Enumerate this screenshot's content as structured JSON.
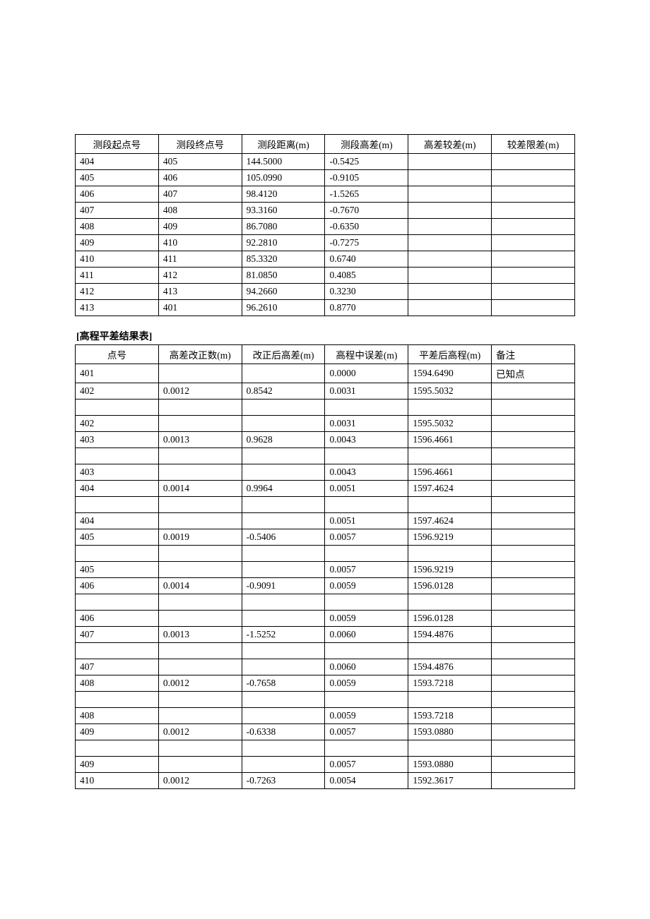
{
  "table1": {
    "columns": [
      "测段起点号",
      "测段终点号",
      "测段距离(m)",
      "测段高差(m)",
      "高差较差(m)",
      "较差限差(m)"
    ],
    "rows": [
      [
        "404",
        "405",
        "144.5000",
        "-0.5425",
        "",
        ""
      ],
      [
        "405",
        "406",
        "105.0990",
        "-0.9105",
        "",
        ""
      ],
      [
        "406",
        "407",
        "98.4120",
        "-1.5265",
        "",
        ""
      ],
      [
        "407",
        "408",
        "93.3160",
        "-0.7670",
        "",
        ""
      ],
      [
        "408",
        "409",
        "86.7080",
        "-0.6350",
        "",
        ""
      ],
      [
        "409",
        "410",
        "92.2810",
        "-0.7275",
        "",
        ""
      ],
      [
        "410",
        "411",
        "85.3320",
        "0.6740",
        "",
        ""
      ],
      [
        "411",
        "412",
        "81.0850",
        "0.4085",
        "",
        ""
      ],
      [
        "412",
        "413",
        "94.2660",
        "0.3230",
        "",
        ""
      ],
      [
        "413",
        "401",
        "96.2610",
        "0.8770",
        "",
        ""
      ]
    ]
  },
  "section2_title": "[高程平差结果表]",
  "table2": {
    "columns": [
      "点号",
      "高差改正数(m)",
      "改正后高差(m)",
      "高程中误差(m)",
      "平差后高程(m)",
      "备注"
    ],
    "rows": [
      [
        "401",
        "",
        "",
        "0.0000",
        "1594.6490",
        "已知点"
      ],
      [
        "402",
        "0.0012",
        "0.8542",
        "0.0031",
        "1595.5032",
        ""
      ],
      [
        "",
        "",
        "",
        "",
        "",
        ""
      ],
      [
        "402",
        "",
        "",
        "0.0031",
        "1595.5032",
        ""
      ],
      [
        "403",
        "0.0013",
        "0.9628",
        "0.0043",
        "1596.4661",
        ""
      ],
      [
        "",
        "",
        "",
        "",
        "",
        ""
      ],
      [
        "403",
        "",
        "",
        "0.0043",
        "1596.4661",
        ""
      ],
      [
        "404",
        "0.0014",
        "0.9964",
        "0.0051",
        "1597.4624",
        ""
      ],
      [
        "",
        "",
        "",
        "",
        "",
        ""
      ],
      [
        "404",
        "",
        "",
        "0.0051",
        "1597.4624",
        ""
      ],
      [
        "405",
        "0.0019",
        "-0.5406",
        "0.0057",
        "1596.9219",
        ""
      ],
      [
        "",
        "",
        "",
        "",
        "",
        ""
      ],
      [
        "405",
        "",
        "",
        "0.0057",
        "1596.9219",
        ""
      ],
      [
        "406",
        "0.0014",
        "-0.9091",
        "0.0059",
        "1596.0128",
        ""
      ],
      [
        "",
        "",
        "",
        "",
        "",
        ""
      ],
      [
        "406",
        "",
        "",
        "0.0059",
        "1596.0128",
        ""
      ],
      [
        "407",
        "0.0013",
        "-1.5252",
        "0.0060",
        "1594.4876",
        ""
      ],
      [
        "",
        "",
        "",
        "",
        "",
        ""
      ],
      [
        "407",
        "",
        "",
        "0.0060",
        "1594.4876",
        ""
      ],
      [
        "408",
        "0.0012",
        "-0.7658",
        "0.0059",
        "1593.7218",
        ""
      ],
      [
        "",
        "",
        "",
        "",
        "",
        ""
      ],
      [
        "408",
        "",
        "",
        "0.0059",
        "1593.7218",
        ""
      ],
      [
        "409",
        "0.0012",
        "-0.6338",
        "0.0057",
        "1593.0880",
        ""
      ],
      [
        "",
        "",
        "",
        "",
        "",
        ""
      ],
      [
        "409",
        "",
        "",
        "0.0057",
        "1593.0880",
        ""
      ],
      [
        "410",
        "0.0012",
        "-0.7263",
        "0.0054",
        "1592.3617",
        ""
      ]
    ]
  }
}
